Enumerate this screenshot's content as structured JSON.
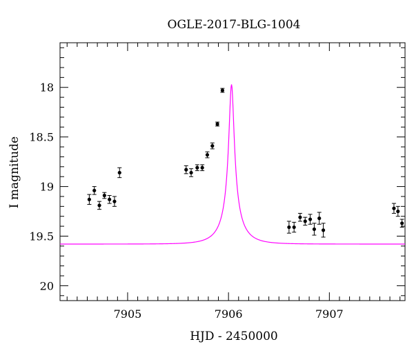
{
  "chart_data": {
    "type": "scatter",
    "title": "OGLE-2017-BLG-1004",
    "xlabel": "HJD - 2450000",
    "ylabel": "I magnitude",
    "xlim": [
      7904.33,
      7907.75
    ],
    "ylim": [
      20.15,
      17.55
    ],
    "y_inverted": true,
    "grid": false,
    "x_major_ticks": [
      7905,
      7906,
      7907
    ],
    "x_tick_labels": [
      "7905",
      "7906",
      "7907"
    ],
    "x_minor_step": 0.1,
    "y_major_ticks": [
      18,
      18.5,
      19,
      19.5,
      20
    ],
    "y_tick_labels": [
      "18",
      "18.5",
      "19",
      "19.5",
      "20"
    ],
    "y_minor_step": 0.1,
    "series": [
      {
        "kind": "points",
        "color": "#000000",
        "points": [
          {
            "x": 7904.62,
            "y": 19.13,
            "err": 0.05
          },
          {
            "x": 7904.67,
            "y": 19.04,
            "err": 0.04
          },
          {
            "x": 7904.72,
            "y": 19.19,
            "err": 0.04
          },
          {
            "x": 7904.77,
            "y": 19.09,
            "err": 0.03
          },
          {
            "x": 7904.82,
            "y": 19.13,
            "err": 0.04
          },
          {
            "x": 7904.87,
            "y": 19.15,
            "err": 0.05
          },
          {
            "x": 7904.92,
            "y": 18.86,
            "err": 0.05
          },
          {
            "x": 7905.58,
            "y": 18.83,
            "err": 0.04
          },
          {
            "x": 7905.63,
            "y": 18.86,
            "err": 0.04
          },
          {
            "x": 7905.69,
            "y": 18.81,
            "err": 0.03
          },
          {
            "x": 7905.74,
            "y": 18.81,
            "err": 0.03
          },
          {
            "x": 7905.79,
            "y": 18.68,
            "err": 0.03
          },
          {
            "x": 7905.84,
            "y": 18.59,
            "err": 0.03
          },
          {
            "x": 7905.89,
            "y": 18.37,
            "err": 0.02
          },
          {
            "x": 7905.94,
            "y": 18.03,
            "err": 0.02
          },
          {
            "x": 7906.6,
            "y": 19.41,
            "err": 0.06
          },
          {
            "x": 7906.65,
            "y": 19.41,
            "err": 0.05
          },
          {
            "x": 7906.71,
            "y": 19.31,
            "err": 0.04
          },
          {
            "x": 7906.76,
            "y": 19.35,
            "err": 0.04
          },
          {
            "x": 7906.81,
            "y": 19.33,
            "err": 0.05
          },
          {
            "x": 7906.85,
            "y": 19.43,
            "err": 0.06
          },
          {
            "x": 7906.9,
            "y": 19.32,
            "err": 0.06
          },
          {
            "x": 7906.94,
            "y": 19.44,
            "err": 0.07
          },
          {
            "x": 7907.64,
            "y": 19.22,
            "err": 0.05
          },
          {
            "x": 7907.68,
            "y": 19.25,
            "err": 0.05
          },
          {
            "x": 7907.72,
            "y": 19.37,
            "err": 0.04
          }
        ]
      },
      {
        "kind": "model",
        "color": "#ff00ff",
        "model": {
          "t0": 7906.03,
          "tE": 0.205,
          "u0": 0.13,
          "baseline": 19.58,
          "peak": 17.97
        }
      }
    ]
  }
}
